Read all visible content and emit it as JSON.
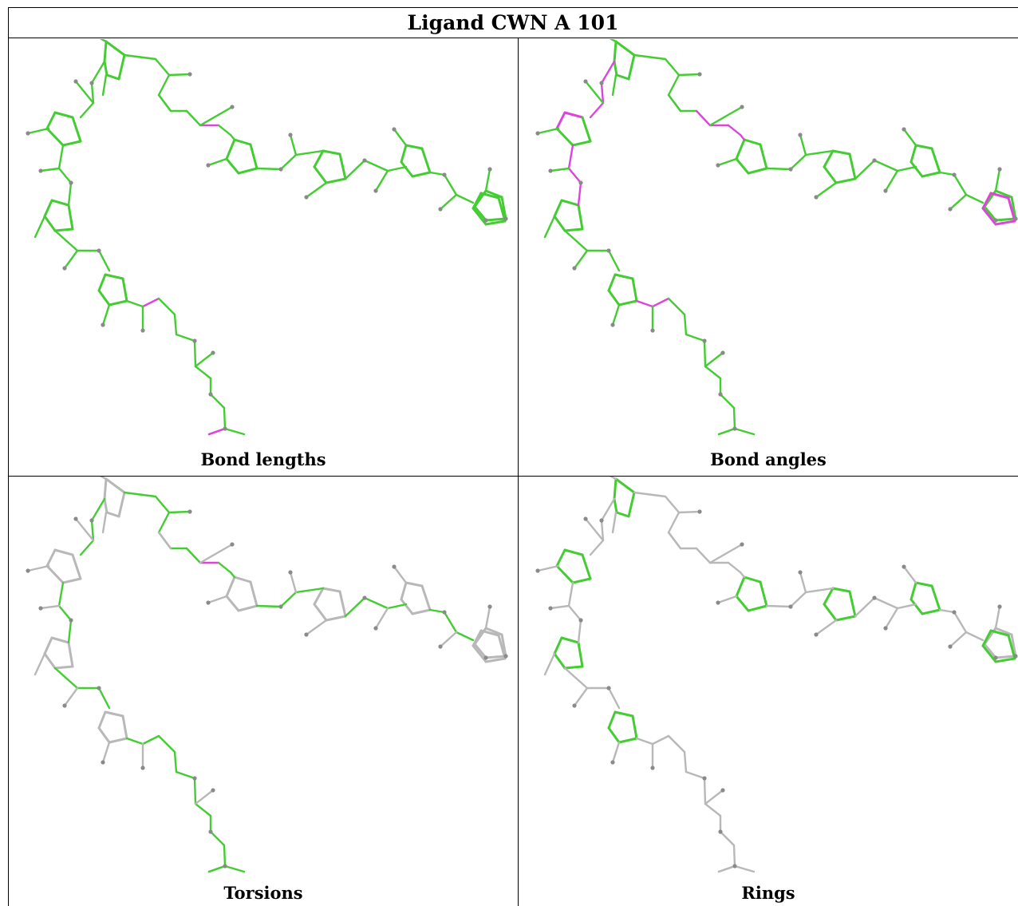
{
  "title": "Ligand CWN A 101",
  "colors": {
    "green": "#44cc33",
    "magenta": "#dd44dd",
    "gray": "#b8b8b8",
    "atom": "#8a8a8a"
  },
  "panels": [
    {
      "caption": "Bond lengths",
      "style": "all-green",
      "magenta_bonds": [
        "HL-1",
        "CL-1",
        "EB-0",
        "EB-1"
      ]
    },
    {
      "caption": "Bond angles",
      "style": "all-green",
      "magenta_bonds": [
        "L1-0",
        "L1-1",
        "L1-2",
        "L1-3",
        "L2-0",
        "L2-1",
        "L2-2",
        "HL-0",
        "HL-1",
        "R2-0",
        "R2-4",
        "CL-0",
        "CL-1",
        "CL-2",
        "L5-0",
        "L5-1",
        "L5-2",
        "L5-3",
        "R9-0",
        "R9-1",
        "R9-2",
        "R9-3",
        "R9-4"
      ]
    },
    {
      "caption": "Torsions",
      "style": "torsions",
      "magenta_bonds": [
        "HL-1"
      ]
    },
    {
      "caption": "Rings",
      "style": "rings",
      "magenta_bonds": []
    }
  ]
}
